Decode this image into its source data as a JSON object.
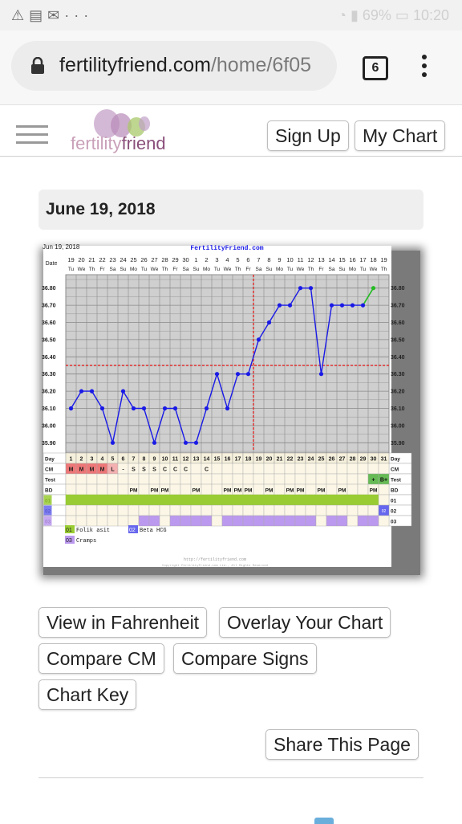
{
  "status_bar": {
    "left_icons": [
      "warning-icon",
      "message-icon",
      "gmail-icon",
      "more-icon"
    ],
    "right_text": "69%",
    "time": "10:20"
  },
  "browser": {
    "url_domain": "fertilityfriend.com",
    "url_path": "/home/6f05",
    "tab_count": "6"
  },
  "site_header": {
    "logo_part1": "fertility",
    "logo_part2": "friend",
    "sign_up": "Sign Up",
    "my_chart": "My Chart"
  },
  "date_header": "June 19, 2018",
  "chart": {
    "date_small": "Jun 19, 2018",
    "title": "FertilityFriend.com",
    "row_labels": [
      "Day",
      "CM",
      "Test",
      "BD",
      "01",
      "02",
      "03"
    ],
    "legend": {
      "01": "Folik asit",
      "02": "Beta HCG",
      "03": "Cramps"
    },
    "footer1": "http://fertilityfriend.com",
    "footer2": "Copyright FertilityFriend.com Ltd., All Rights Reserved"
  },
  "chart_data": {
    "type": "line",
    "title": "FertilityFriend.com",
    "dates": [
      "19",
      "20",
      "21",
      "22",
      "23",
      "24",
      "25",
      "26",
      "27",
      "28",
      "29",
      "30",
      "1",
      "2",
      "3",
      "4",
      "5",
      "6",
      "7",
      "8",
      "9",
      "10",
      "11",
      "12",
      "13",
      "14",
      "15",
      "16",
      "17",
      "18",
      "19"
    ],
    "weekdays": [
      "Tu",
      "We",
      "Th",
      "Fr",
      "Sa",
      "Su",
      "Mo",
      "Tu",
      "We",
      "Th",
      "Fr",
      "Sa",
      "Su",
      "Mo",
      "Tu",
      "We",
      "Th",
      "Fr",
      "Sa",
      "Su",
      "Mo",
      "Tu",
      "We",
      "Th",
      "Fr",
      "Sa",
      "Su",
      "Mo",
      "Tu",
      "We",
      "Th"
    ],
    "days": [
      1,
      2,
      3,
      4,
      5,
      6,
      7,
      8,
      9,
      10,
      11,
      12,
      13,
      14,
      15,
      16,
      17,
      18,
      19,
      20,
      21,
      22,
      23,
      24,
      25,
      26,
      27,
      28,
      29,
      30,
      31
    ],
    "temps": [
      36.1,
      36.2,
      36.2,
      36.1,
      35.9,
      36.2,
      36.1,
      36.1,
      35.9,
      36.1,
      36.1,
      35.9,
      35.9,
      36.1,
      36.3,
      36.1,
      36.3,
      36.3,
      36.5,
      36.6,
      36.7,
      36.7,
      36.8,
      36.8,
      36.3,
      36.7,
      36.7,
      36.7,
      36.7,
      36.8,
      null
    ],
    "y_ticks": [
      "35.90",
      "36.00",
      "36.10",
      "36.20",
      "36.30",
      "36.40",
      "36.50",
      "36.60",
      "36.70",
      "36.80"
    ],
    "ylim": [
      35.85,
      36.85
    ],
    "coverline": 36.35,
    "ovulation_day": 18,
    "cm": [
      "M",
      "M",
      "M",
      "M",
      "L",
      "-",
      "S",
      "S",
      "S",
      "C",
      "C",
      "C",
      "",
      "C",
      "",
      "",
      "",
      "",
      "",
      "",
      "",
      "",
      "",
      "",
      "",
      "",
      "",
      "",
      "",
      "",
      ""
    ],
    "test": [
      "",
      "",
      "",
      "",
      "",
      "",
      "",
      "",
      "",
      "",
      "",
      "",
      "",
      "",
      "",
      "",
      "",
      "",
      "",
      "",
      "",
      "",
      "",
      "",
      "",
      "",
      "",
      "",
      "",
      "+",
      "B+"
    ],
    "bd": [
      "",
      "",
      "",
      "",
      "",
      "",
      "PM",
      "",
      "PM",
      "PM",
      "",
      "",
      "PM",
      "",
      "",
      "PM",
      "PM",
      "PM",
      "",
      "PM",
      "",
      "PM",
      "PM",
      "",
      "PM",
      "",
      "PM",
      "",
      "",
      "PM",
      ""
    ],
    "row01": [
      1,
      1,
      1,
      1,
      1,
      1,
      1,
      1,
      1,
      1,
      1,
      1,
      1,
      1,
      1,
      1,
      1,
      1,
      1,
      1,
      1,
      1,
      1,
      1,
      1,
      1,
      1,
      1,
      1,
      1,
      0
    ],
    "row02_marker": "02",
    "row03": [
      0,
      0,
      0,
      0,
      0,
      0,
      0,
      1,
      1,
      0,
      1,
      1,
      1,
      1,
      0,
      1,
      1,
      1,
      1,
      1,
      1,
      1,
      1,
      1,
      0,
      1,
      1,
      0,
      1,
      1,
      0
    ],
    "colors": {
      "temp_line": "#1a1ae6",
      "last_segment": "#22bb22",
      "coverline": "#e03030",
      "row01": "#99cc33",
      "row02": "#6666ee",
      "row03": "#bb99ee"
    }
  },
  "buttons": {
    "view_fahrenheit": "View in Fahrenheit",
    "overlay_chart": "Overlay Your Chart",
    "compare_cm": "Compare CM",
    "compare_signs": "Compare Signs",
    "chart_key": "Chart Key",
    "share_page": "Share This Page"
  }
}
